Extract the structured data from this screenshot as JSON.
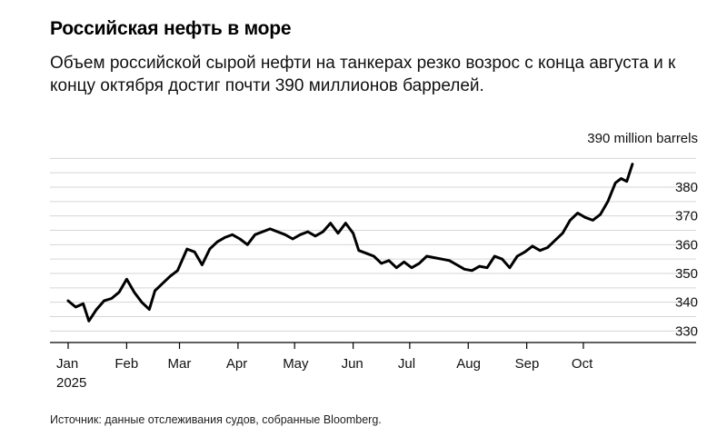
{
  "title": "Российская нефть в море",
  "subtitle": "Объем российской сырой нефти на танкерах резко возрос с конца августа и к концу октября достиг почти 390 миллионов баррелей.",
  "source": "Источник: данные отслеживания судов, собранные Bloomberg.",
  "chart_data": {
    "type": "line",
    "title": "Российская нефть в море",
    "ylabel": "",
    "xlabel": "",
    "y_unit_label": "390 million barrels",
    "ylim": [
      326,
      392
    ],
    "y_ticks": [
      330,
      340,
      350,
      360,
      370,
      380
    ],
    "x_ticks": [
      {
        "label": "Jan",
        "sub": "2025",
        "day": 0
      },
      {
        "label": "Feb",
        "day": 31
      },
      {
        "label": "Mar",
        "day": 59
      },
      {
        "label": "Apr",
        "day": 90
      },
      {
        "label": "May",
        "day": 120
      },
      {
        "label": "Jun",
        "day": 151
      },
      {
        "label": "Jul",
        "day": 181
      },
      {
        "label": "Aug",
        "day": 212
      },
      {
        "label": "Sep",
        "day": 243
      },
      {
        "label": "Oct",
        "day": 273
      }
    ],
    "grid": true,
    "line_color": "#000000",
    "series": [
      {
        "name": "",
        "points": [
          [
            "2025-01-01",
            340.5
          ],
          [
            "2025-01-05",
            338.3
          ],
          [
            "2025-01-09",
            339.5
          ],
          [
            "2025-01-12",
            333.5
          ],
          [
            "2025-01-16",
            337.5
          ],
          [
            "2025-01-20",
            340.5
          ],
          [
            "2025-01-24",
            341.3
          ],
          [
            "2025-01-28",
            343.5
          ],
          [
            "2025-02-01",
            348.0
          ],
          [
            "2025-02-05",
            343.5
          ],
          [
            "2025-02-09",
            340.0
          ],
          [
            "2025-02-13",
            337.5
          ],
          [
            "2025-02-16",
            344.0
          ],
          [
            "2025-02-20",
            346.5
          ],
          [
            "2025-02-24",
            349.0
          ],
          [
            "2025-02-28",
            351.0
          ],
          [
            "2025-03-05",
            358.5
          ],
          [
            "2025-03-09",
            357.5
          ],
          [
            "2025-03-13",
            353.0
          ],
          [
            "2025-03-17",
            358.5
          ],
          [
            "2025-03-21",
            361.0
          ],
          [
            "2025-03-25",
            362.5
          ],
          [
            "2025-03-29",
            363.5
          ],
          [
            "2025-04-02",
            362.0
          ],
          [
            "2025-04-06",
            360.0
          ],
          [
            "2025-04-10",
            363.5
          ],
          [
            "2025-04-14",
            364.5
          ],
          [
            "2025-04-18",
            365.5
          ],
          [
            "2025-04-22",
            364.5
          ],
          [
            "2025-04-26",
            363.5
          ],
          [
            "2025-04-30",
            362.0
          ],
          [
            "2025-05-04",
            363.5
          ],
          [
            "2025-05-08",
            364.5
          ],
          [
            "2025-05-12",
            363.0
          ],
          [
            "2025-05-16",
            364.5
          ],
          [
            "2025-05-20",
            367.5
          ],
          [
            "2025-05-24",
            364.0
          ],
          [
            "2025-05-28",
            367.5
          ],
          [
            "2025-06-01",
            364.0
          ],
          [
            "2025-06-04",
            358.0
          ],
          [
            "2025-06-08",
            357.0
          ],
          [
            "2025-06-12",
            356.0
          ],
          [
            "2025-06-16",
            353.5
          ],
          [
            "2025-06-20",
            354.5
          ],
          [
            "2025-06-24",
            352.0
          ],
          [
            "2025-06-28",
            354.0
          ],
          [
            "2025-07-02",
            352.0
          ],
          [
            "2025-07-06",
            353.5
          ],
          [
            "2025-07-10",
            356.0
          ],
          [
            "2025-07-14",
            355.5
          ],
          [
            "2025-07-18",
            355.0
          ],
          [
            "2025-07-22",
            354.5
          ],
          [
            "2025-07-26",
            353.0
          ],
          [
            "2025-07-30",
            351.5
          ],
          [
            "2025-08-03",
            351.0
          ],
          [
            "2025-08-07",
            352.5
          ],
          [
            "2025-08-11",
            352.0
          ],
          [
            "2025-08-15",
            356.0
          ],
          [
            "2025-08-19",
            355.0
          ],
          [
            "2025-08-23",
            352.0
          ],
          [
            "2025-08-27",
            356.0
          ],
          [
            "2025-08-31",
            357.5
          ],
          [
            "2025-09-04",
            359.5
          ],
          [
            "2025-09-08",
            358.0
          ],
          [
            "2025-09-12",
            359.0
          ],
          [
            "2025-09-16",
            361.5
          ],
          [
            "2025-09-20",
            364.0
          ],
          [
            "2025-09-24",
            368.5
          ],
          [
            "2025-09-28",
            371.0
          ],
          [
            "2025-10-02",
            369.5
          ],
          [
            "2025-10-06",
            368.5
          ],
          [
            "2025-10-10",
            370.5
          ],
          [
            "2025-10-14",
            375.0
          ],
          [
            "2025-10-18",
            381.5
          ],
          [
            "2025-10-21",
            383.0
          ],
          [
            "2025-10-24",
            382.0
          ],
          [
            "2025-10-27",
            388.0
          ]
        ]
      }
    ]
  }
}
